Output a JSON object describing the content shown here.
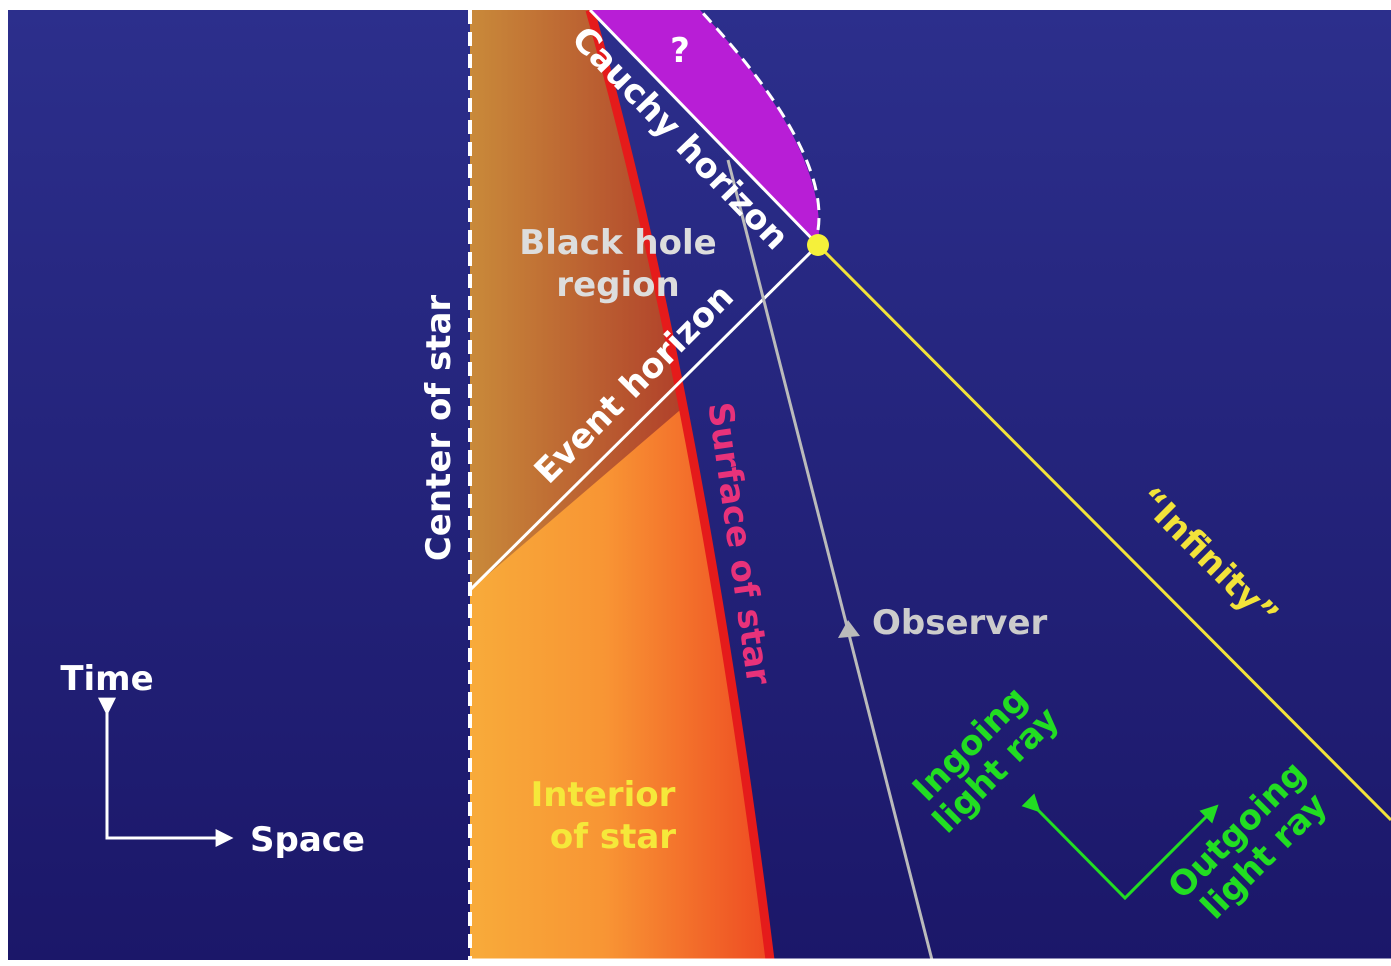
{
  "labels": {
    "question": "?",
    "cauchy_horizon": "Cauchy horizon",
    "black_hole_region": [
      "Black hole",
      "region"
    ],
    "event_horizon": "Event horizon",
    "center_of_star": "Center of star",
    "surface_of_star": "Surface of star",
    "infinity": "“Infinity”",
    "observer": "Observer",
    "time": "Time",
    "space": "Space",
    "interior_of_star": [
      "Interior",
      "of star"
    ],
    "ingoing_light_ray": [
      "Ingoing",
      "light ray"
    ],
    "outgoing_light_ray": [
      "Outgoing",
      "light ray"
    ]
  }
}
